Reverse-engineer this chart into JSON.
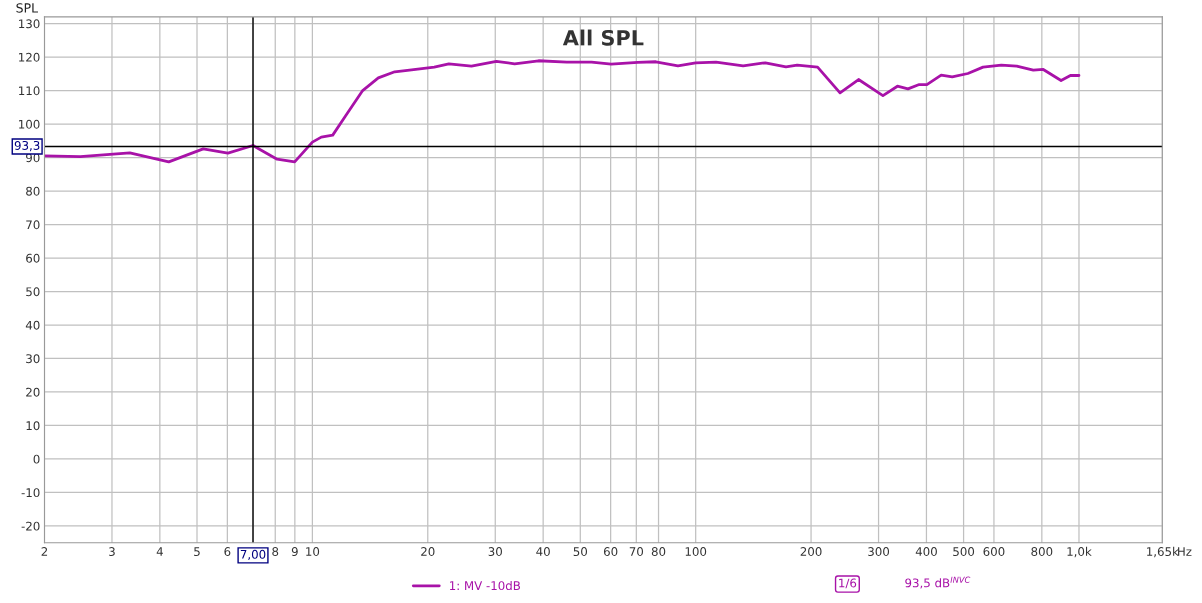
{
  "chart_data": {
    "type": "line",
    "title": "All SPL",
    "ylabel": "SPL",
    "log": "x",
    "grid": true,
    "legend": "bottom",
    "marker": "none",
    "line_style": "solid",
    "xlim": [
      2,
      1650
    ],
    "ylim": [
      -25,
      132
    ],
    "xticks": [
      2,
      3,
      4,
      5,
      6,
      {
        "value": 7,
        "label": null
      },
      8,
      9,
      10,
      20,
      30,
      40,
      50,
      60,
      70,
      80,
      100,
      200,
      300,
      400,
      500,
      600,
      800,
      {
        "value": 1000,
        "label": "1,0k"
      },
      {
        "value": 1650,
        "label": "1,65k"
      }
    ],
    "xlabel": "Hz",
    "yticks": [
      -20,
      -10,
      0,
      10,
      20,
      30,
      40,
      50,
      60,
      70,
      80,
      90,
      100,
      110,
      120,
      130
    ],
    "ref_lines": [
      {
        "axis": "x",
        "value": 7,
        "label": "7,00",
        "color": "#000000"
      },
      {
        "axis": "y",
        "value": 93.3,
        "label": "93,3",
        "color": "#000000"
      }
    ],
    "annotations": [
      "1/6",
      "93,5 dB$^{INVC}$"
    ],
    "series": [
      {
        "name": "1: MV -10dB",
        "color": "#a812a8",
        "x": [
          2,
          2.48,
          3.34,
          4.22,
          5.19,
          6.02,
          7.0,
          8.09,
          8.99,
          10,
          10.55,
          11.3,
          12.2,
          13.5,
          14.86,
          16.4,
          17.7,
          20.8,
          22.7,
          26,
          30.2,
          33.7,
          38.9,
          46.1,
          53.5,
          60.2,
          70.6,
          78.7,
          89.9,
          100,
          113,
          133,
          152,
          172,
          184,
          208,
          238,
          266,
          308,
          336,
          358,
          383,
          401,
          437,
          467,
          513,
          562,
          627,
          688,
          760,
          807,
          898,
          950,
          1000
        ],
        "values": [
          90.5,
          90.3,
          91.4,
          88.7,
          92.6,
          91.3,
          93.6,
          89.5,
          88.7,
          94.6,
          96.1,
          96.7,
          102.4,
          109.9,
          113.8,
          115.6,
          116.0,
          117.0,
          118.0,
          117.3,
          118.7,
          118.0,
          118.9,
          118.5,
          118.5,
          117.9,
          118.4,
          118.6,
          117.4,
          118.3,
          118.5,
          117.4,
          118.3,
          117.1,
          117.6,
          117.0,
          109.3,
          113.3,
          108.5,
          111.3,
          110.5,
          111.8,
          111.8,
          114.6,
          114.1,
          115.1,
          117.0,
          117.6,
          117.3,
          116.1,
          116.3,
          113.0,
          114.5,
          114.5
        ]
      }
    ]
  }
}
